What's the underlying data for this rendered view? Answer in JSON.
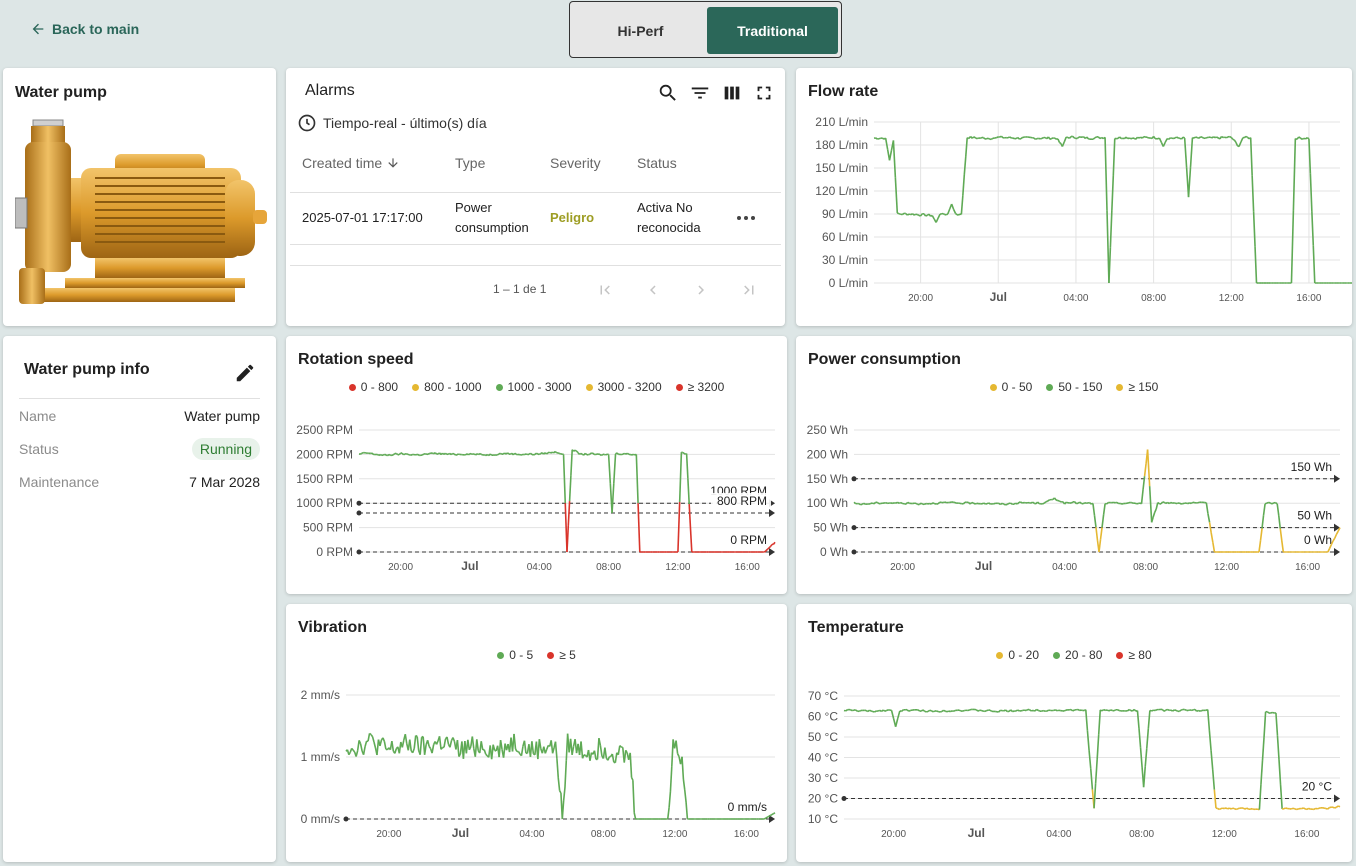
{
  "nav": {
    "back_label": "Back to main"
  },
  "view_toggle": {
    "options": [
      "Hi-Perf",
      "Traditional"
    ],
    "selected": "Traditional"
  },
  "pump": {
    "title": "Water pump"
  },
  "info": {
    "title": "Water pump info",
    "rows": [
      {
        "key": "Name",
        "value": "Water pump"
      },
      {
        "key": "Status",
        "value": "Running"
      },
      {
        "key": "Maintenance",
        "value": "7 Mar 2028"
      }
    ]
  },
  "alarms": {
    "title": "Alarms",
    "time_window": "Tiempo-real - último(s) día",
    "columns": [
      "Created time",
      "Type",
      "Severity",
      "Status"
    ],
    "rows": [
      {
        "created": "2025-07-01 17:17:00",
        "type_line1": "Power",
        "type_line2": "consumption",
        "severity": "Peligro",
        "status_line1": "Activa No",
        "status_line2": "reconocida"
      }
    ],
    "pagination": "1 – 1 de 1"
  },
  "colors": {
    "green": "#5faa55",
    "yellow": "#e5b832",
    "red": "#d9342b",
    "accent": "#2b6759"
  },
  "chart_data": [
    {
      "id": "flow",
      "title": "Flow rate",
      "type": "line",
      "x_ticks": [
        "20:00",
        "Jul",
        "04:00",
        "08:00",
        "12:00",
        "16:00"
      ],
      "y_ticks": [
        "0 L/min",
        "30 L/min",
        "60 L/min",
        "90 L/min",
        "120 L/min",
        "150 L/min",
        "180 L/min",
        "210 L/min"
      ],
      "ylim": [
        0,
        210
      ],
      "legend": [],
      "thresholds": [],
      "series_hours": [
        [
          17.6,
          189
        ],
        [
          18.2,
          189
        ],
        [
          18.4,
          160
        ],
        [
          18.6,
          186
        ],
        [
          18.8,
          90
        ],
        [
          19.5,
          90
        ],
        [
          20,
          89
        ],
        [
          20.6,
          88
        ],
        [
          20.8,
          79
        ],
        [
          21,
          90
        ],
        [
          21.4,
          90
        ],
        [
          21.6,
          103
        ],
        [
          21.8,
          89
        ],
        [
          22.1,
          90
        ],
        [
          22.4,
          190
        ],
        [
          23,
          189
        ],
        [
          23.8,
          189
        ],
        [
          24,
          190
        ],
        [
          25,
          189
        ],
        [
          26,
          189
        ],
        [
          27,
          189
        ],
        [
          27.3,
          178
        ],
        [
          27.5,
          190
        ],
        [
          28,
          190
        ],
        [
          28.8,
          189
        ],
        [
          29.5,
          190
        ],
        [
          29.7,
          0
        ],
        [
          30,
          189
        ],
        [
          30.5,
          190
        ],
        [
          31,
          189
        ],
        [
          32,
          190
        ],
        [
          32.3,
          189
        ],
        [
          32.5,
          178
        ],
        [
          32.7,
          189
        ],
        [
          33.6,
          189
        ],
        [
          33.8,
          112
        ],
        [
          34.0,
          189
        ],
        [
          35,
          189
        ],
        [
          36,
          190
        ],
        [
          36.4,
          178
        ],
        [
          36.6,
          190
        ],
        [
          37,
          189
        ],
        [
          37.3,
          0
        ],
        [
          38,
          0
        ],
        [
          39,
          0
        ],
        [
          39.1,
          0
        ],
        [
          39.3,
          189
        ],
        [
          40,
          189
        ],
        [
          40.3,
          0
        ],
        [
          41,
          0
        ],
        [
          42,
          0
        ],
        [
          43,
          0
        ],
        [
          44,
          0
        ],
        [
          45,
          0
        ]
      ]
    },
    {
      "id": "rotation",
      "title": "Rotation speed",
      "type": "line",
      "x_ticks": [
        "20:00",
        "Jul",
        "04:00",
        "08:00",
        "12:00",
        "16:00"
      ],
      "y_ticks": [
        "0 RPM",
        "500 RPM",
        "1000 RPM",
        "1500 RPM",
        "2000 RPM",
        "2500 RPM"
      ],
      "ylim": [
        0,
        2500
      ],
      "legend": [
        {
          "label": "0 - 800",
          "color": "#d9342b"
        },
        {
          "label": "800 - 1000",
          "color": "#e5b832"
        },
        {
          "label": "1000 - 3000",
          "color": "#5faa55"
        },
        {
          "label": "3000 - 3200",
          "color": "#e5b832"
        },
        {
          "label": "≥ 3200",
          "color": "#d9342b"
        }
      ],
      "thresholds": [
        {
          "label": "1000 RPM",
          "value": 1000
        },
        {
          "label": "800 RPM",
          "value": 800
        },
        {
          "label": "0 RPM",
          "value": 0
        }
      ],
      "low_start": 29.6,
      "low_end": 30.2,
      "series_hours": [
        [
          17.6,
          2000
        ],
        [
          18,
          2030
        ],
        [
          19,
          1980
        ],
        [
          20,
          2010
        ],
        [
          21,
          1990
        ],
        [
          22,
          2020
        ],
        [
          23,
          2000
        ],
        [
          24,
          2010
        ],
        [
          25,
          1990
        ],
        [
          26,
          2020
        ],
        [
          27,
          2000
        ],
        [
          28,
          2010
        ],
        [
          29,
          2050
        ],
        [
          29.4,
          2000
        ],
        [
          29.6,
          0
        ],
        [
          29.9,
          2100
        ],
        [
          30.4,
          2000
        ],
        [
          31,
          2010
        ],
        [
          31.5,
          1990
        ],
        [
          32,
          2000
        ],
        [
          32.2,
          800
        ],
        [
          32.4,
          2020
        ],
        [
          33,
          2010
        ],
        [
          33.6,
          2000
        ],
        [
          33.8,
          0
        ],
        [
          34.2,
          0
        ],
        [
          35,
          0
        ],
        [
          36,
          0
        ],
        [
          36.2,
          2050
        ],
        [
          36.5,
          2000
        ],
        [
          36.8,
          0
        ],
        [
          37.5,
          0
        ],
        [
          38,
          0
        ],
        [
          39,
          0
        ],
        [
          40,
          0
        ],
        [
          41,
          0
        ],
        [
          41.6,
          200
        ]
      ]
    },
    {
      "id": "power",
      "title": "Power consumption",
      "type": "line",
      "x_ticks": [
        "20:00",
        "Jul",
        "04:00",
        "08:00",
        "12:00",
        "16:00"
      ],
      "y_ticks": [
        "0 Wh",
        "50 Wh",
        "100 Wh",
        "150 Wh",
        "200 Wh",
        "250 Wh"
      ],
      "ylim": [
        0,
        250
      ],
      "legend": [
        {
          "label": "0 - 50",
          "color": "#e5b832"
        },
        {
          "label": "50 - 150",
          "color": "#5faa55"
        },
        {
          "label": "≥ 150",
          "color": "#e5b832"
        }
      ],
      "thresholds": [
        {
          "label": "150 Wh",
          "value": 150
        },
        {
          "label": "50 Wh",
          "value": 50
        },
        {
          "label": "0 Wh",
          "value": 0
        }
      ],
      "series_hours": [
        [
          17.6,
          100
        ],
        [
          18,
          98
        ],
        [
          19,
          101
        ],
        [
          20,
          100
        ],
        [
          21,
          99
        ],
        [
          22,
          101
        ],
        [
          23,
          100
        ],
        [
          24,
          100
        ],
        [
          25,
          98
        ],
        [
          26,
          101
        ],
        [
          27,
          100
        ],
        [
          27.5,
          110
        ],
        [
          28,
          100
        ],
        [
          28.5,
          101
        ],
        [
          29,
          100
        ],
        [
          29.4,
          99
        ],
        [
          29.7,
          0
        ],
        [
          30,
          100
        ],
        [
          31,
          100
        ],
        [
          31.8,
          100
        ],
        [
          32.1,
          210
        ],
        [
          32.3,
          60
        ],
        [
          32.6,
          100
        ],
        [
          33,
          101
        ],
        [
          34,
          100
        ],
        [
          35,
          100
        ],
        [
          35.4,
          0
        ],
        [
          36,
          0
        ],
        [
          37,
          0
        ],
        [
          37.6,
          0
        ],
        [
          37.9,
          100
        ],
        [
          38.5,
          100
        ],
        [
          38.8,
          0
        ],
        [
          39.5,
          0
        ],
        [
          40,
          0
        ],
        [
          41,
          0
        ],
        [
          41.6,
          50
        ]
      ]
    },
    {
      "id": "vibration",
      "title": "Vibration",
      "type": "line",
      "x_ticks": [
        "20:00",
        "Jul",
        "04:00",
        "08:00",
        "12:00",
        "16:00"
      ],
      "y_ticks": [
        "0 mm/s",
        "1 mm/s",
        "2 mm/s"
      ],
      "ylim": [
        0,
        2
      ],
      "legend": [
        {
          "label": "0 - 5",
          "color": "#5faa55"
        },
        {
          "label": "≥ 5",
          "color": "#d9342b"
        }
      ],
      "thresholds": [
        {
          "label": "0 mm/s",
          "value": 0
        }
      ],
      "series_hours": [
        [
          17.6,
          1.2
        ],
        [
          18,
          1.15
        ],
        [
          19,
          1.25
        ],
        [
          20,
          1.1
        ],
        [
          21,
          1.2
        ],
        [
          22,
          1.15
        ],
        [
          23,
          1.25
        ],
        [
          24,
          1.1
        ],
        [
          25,
          1.2
        ],
        [
          26,
          1.1
        ],
        [
          27,
          1.25
        ],
        [
          28,
          1.1
        ],
        [
          29,
          1.2
        ],
        [
          29.4,
          1.05
        ],
        [
          29.7,
          0
        ],
        [
          30,
          1.2
        ],
        [
          31,
          1.1
        ],
        [
          32,
          1.15
        ],
        [
          33,
          1.05
        ],
        [
          33.5,
          1.0
        ],
        [
          33.8,
          0
        ],
        [
          34.5,
          0
        ],
        [
          35,
          0
        ],
        [
          35.6,
          0
        ],
        [
          35.9,
          1.2
        ],
        [
          36.4,
          1.0
        ],
        [
          36.7,
          0
        ],
        [
          37,
          0
        ],
        [
          38,
          0
        ],
        [
          39,
          0
        ],
        [
          40,
          0
        ],
        [
          41,
          0
        ],
        [
          41.6,
          0.1
        ]
      ],
      "noise": 0.18
    },
    {
      "id": "temperature",
      "title": "Temperature",
      "type": "line",
      "x_ticks": [
        "20:00",
        "Jul",
        "04:00",
        "08:00",
        "12:00",
        "16:00"
      ],
      "y_ticks": [
        "10 °C",
        "20 °C",
        "30 °C",
        "40 °C",
        "50 °C",
        "60 °C",
        "70 °C"
      ],
      "ylim": [
        10,
        70
      ],
      "legend": [
        {
          "label": "0 - 20",
          "color": "#e5b832"
        },
        {
          "label": "20 - 80",
          "color": "#5faa55"
        },
        {
          "label": "≥ 80",
          "color": "#d9342b"
        }
      ],
      "thresholds": [
        {
          "label": "20 °C",
          "value": 20
        }
      ],
      "series_hours": [
        [
          17.6,
          63
        ],
        [
          18,
          63
        ],
        [
          19,
          62.5
        ],
        [
          19.5,
          63
        ],
        [
          19.9,
          63
        ],
        [
          20.1,
          55
        ],
        [
          20.3,
          63
        ],
        [
          21,
          63
        ],
        [
          22,
          62.5
        ],
        [
          23,
          63
        ],
        [
          24,
          63
        ],
        [
          25,
          62.5
        ],
        [
          26,
          63
        ],
        [
          27,
          63
        ],
        [
          28,
          63
        ],
        [
          29,
          63
        ],
        [
          29.3,
          63
        ],
        [
          29.7,
          15
        ],
        [
          30,
          63
        ],
        [
          30.5,
          63
        ],
        [
          31,
          63
        ],
        [
          31.8,
          63
        ],
        [
          32.1,
          26
        ],
        [
          32.4,
          63
        ],
        [
          33,
          63
        ],
        [
          34,
          63
        ],
        [
          35,
          63
        ],
        [
          35.2,
          63
        ],
        [
          35.6,
          15
        ],
        [
          36,
          15
        ],
        [
          37,
          15
        ],
        [
          37.7,
          15
        ],
        [
          38,
          62
        ],
        [
          38.5,
          62
        ],
        [
          38.8,
          15
        ],
        [
          39.5,
          15
        ],
        [
          40,
          15
        ],
        [
          41,
          15
        ],
        [
          41.6,
          16
        ]
      ]
    }
  ]
}
